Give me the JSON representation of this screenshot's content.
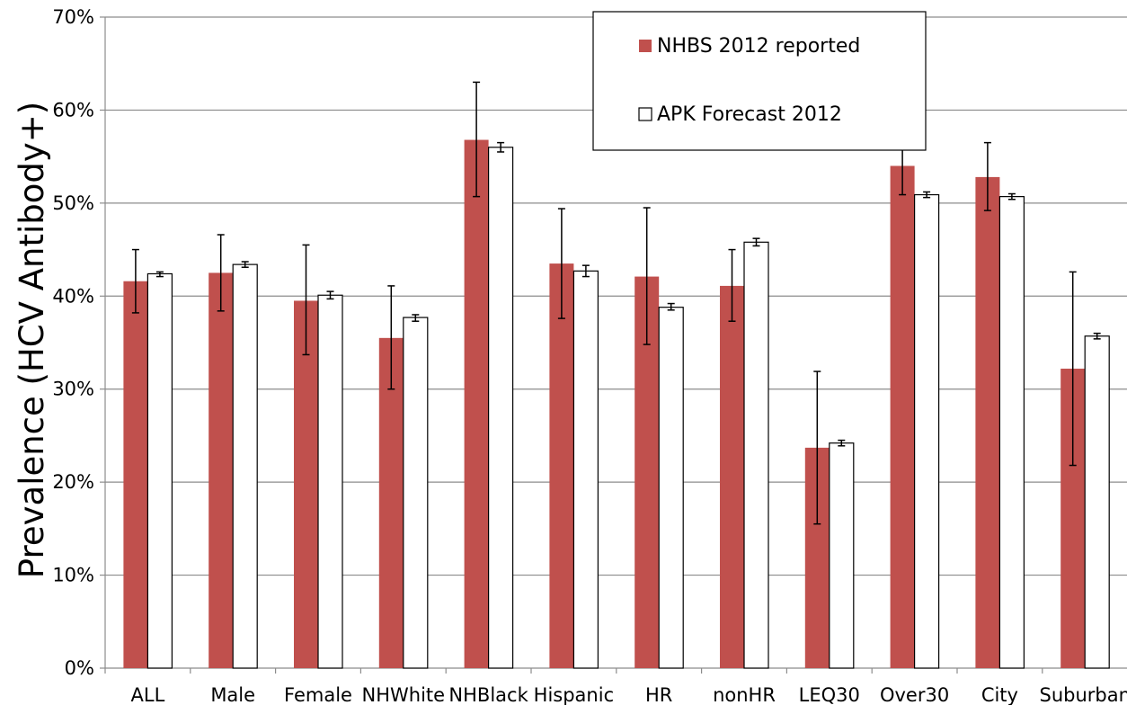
{
  "chart_data": {
    "type": "bar",
    "title": "",
    "xlabel": "",
    "ylabel": "Prevalence (HCV Antibody+)",
    "ylim": [
      0,
      70
    ],
    "yticks": [
      "0%",
      "10%",
      "20%",
      "30%",
      "40%",
      "50%",
      "60%",
      "70%"
    ],
    "grid": true,
    "legend_placement": "top-center",
    "categories": [
      "ALL",
      "Male",
      "Female",
      "NHWhite",
      "NHBlack",
      "Hispanic",
      "HR",
      "nonHR",
      "LEQ30",
      "Over30",
      "City",
      "Suburban"
    ],
    "series": [
      {
        "name": "NHBS 2012 reported",
        "color": "#c0504d",
        "values": [
          41.6,
          42.5,
          39.5,
          35.5,
          56.8,
          43.5,
          42.1,
          41.1,
          23.7,
          54.0,
          52.8,
          32.2
        ],
        "error_low": [
          38.2,
          38.4,
          33.7,
          30.0,
          50.7,
          37.6,
          34.8,
          37.3,
          15.5,
          50.9,
          49.2,
          21.8
        ],
        "error_high": [
          45.0,
          46.6,
          45.5,
          41.1,
          63.0,
          49.4,
          49.5,
          45.0,
          31.9,
          57.3,
          56.5,
          42.6
        ]
      },
      {
        "name": "APK Forecast 2012",
        "color": "#ffffff",
        "values": [
          42.4,
          43.4,
          40.1,
          37.7,
          56.0,
          42.7,
          38.8,
          45.8,
          24.2,
          50.9,
          50.7,
          35.7
        ],
        "error_low": [
          42.1,
          43.1,
          39.7,
          37.3,
          55.5,
          42.1,
          38.5,
          45.4,
          23.9,
          50.6,
          50.4,
          35.4
        ],
        "error_high": [
          42.6,
          43.7,
          40.5,
          38.0,
          56.5,
          43.3,
          39.2,
          46.2,
          24.5,
          51.2,
          51.0,
          36.0
        ]
      }
    ]
  }
}
